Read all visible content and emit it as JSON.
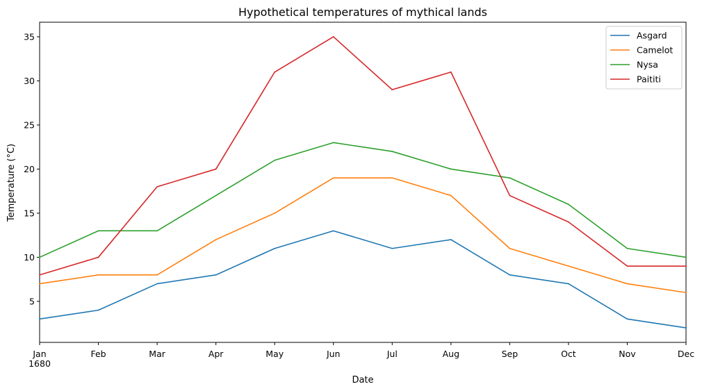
{
  "chart_data": {
    "type": "line",
    "title": "Hypothetical temperatures of mythical lands",
    "xlabel": "Date",
    "ylabel": "Temperature (°C)",
    "categories": [
      "Jan",
      "Feb",
      "Mar",
      "Apr",
      "May",
      "Jun",
      "Jul",
      "Aug",
      "Sep",
      "Oct",
      "Nov",
      "Dec"
    ],
    "x_year_label": "1680",
    "yticks": [
      5,
      10,
      15,
      20,
      25,
      30,
      35
    ],
    "ylim": [
      0.35,
      36.65
    ],
    "grid": false,
    "legend_position": "top-right",
    "series": [
      {
        "name": "Asgard",
        "color": "#1f77b4",
        "values": [
          3,
          4,
          7,
          8,
          11,
          13,
          11,
          12,
          8,
          7,
          3,
          2
        ]
      },
      {
        "name": "Camelot",
        "color": "#ff7f0e",
        "values": [
          7,
          8,
          8,
          12,
          15,
          19,
          19,
          17,
          11,
          9,
          7,
          6
        ]
      },
      {
        "name": "Nysa",
        "color": "#2ca02c",
        "values": [
          10,
          13,
          13,
          17,
          21,
          23,
          22,
          20,
          19,
          16,
          11,
          10
        ]
      },
      {
        "name": "Paititi",
        "color": "#d62728",
        "values": [
          8,
          10,
          18,
          20,
          31,
          35,
          29,
          31,
          17,
          14,
          9,
          9
        ]
      }
    ]
  }
}
